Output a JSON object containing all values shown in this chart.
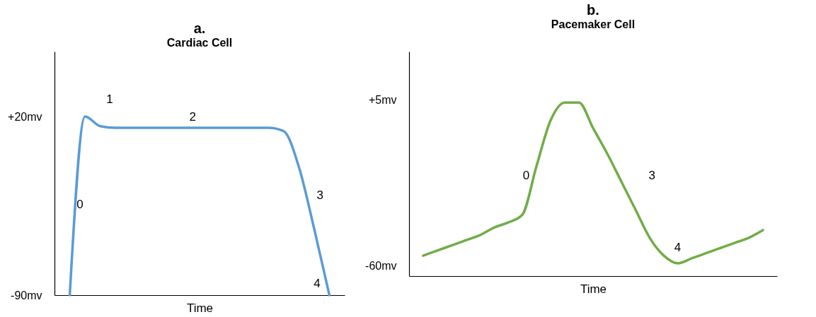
{
  "chart_data": [
    {
      "type": "line",
      "title": "a.",
      "subtitle": "Cardiac Cell",
      "xlabel": "Time",
      "categories": [
        null,
        null,
        null,
        null,
        null,
        null,
        null,
        null,
        null,
        null,
        null,
        null,
        null,
        null,
        null,
        null,
        null,
        null
      ],
      "series": [
        {
          "color": "#5b9bd5",
          "values": [
            -90,
            20,
            14,
            13,
            13,
            13,
            13,
            13,
            13,
            13,
            13,
            13,
            13,
            13,
            11,
            -11,
            -49,
            -90
          ]
        }
      ],
      "ylim": [
        -90,
        60
      ],
      "yticks": [
        {
          "value": 20,
          "label": "+20mv"
        },
        {
          "value": -90,
          "label": "-90mv"
        }
      ],
      "grid": false,
      "marker": "none",
      "line_style": "solid",
      "annotations": [
        "0",
        "1",
        "2",
        "3",
        "4"
      ]
    },
    {
      "type": "line",
      "title": "b.",
      "subtitle": "Pacemaker Cell",
      "xlabel": "Time",
      "categories": [
        null,
        null,
        null,
        null,
        null,
        null,
        null,
        null,
        null,
        null,
        null,
        null,
        null,
        null,
        null,
        null,
        null,
        null,
        null,
        null,
        null,
        null,
        null,
        null,
        null
      ],
      "series": [
        {
          "color": "#70ad47",
          "values": [
            -56,
            -54,
            -52,
            -50,
            -48,
            -45,
            -43,
            -40,
            -21,
            -3,
            4,
            4,
            -6,
            -16,
            -27,
            -38,
            -49,
            -56,
            -59,
            -57,
            -55,
            -53,
            -51,
            -49,
            -46
          ]
        }
      ],
      "ylim": [
        -64,
        24
      ],
      "yticks": [
        {
          "value": 5,
          "label": "+5mv"
        },
        {
          "value": -60,
          "label": "-60mv"
        }
      ],
      "grid": false,
      "marker": "none",
      "line_style": "solid",
      "annotations": [
        "0",
        "3",
        "4"
      ]
    }
  ]
}
